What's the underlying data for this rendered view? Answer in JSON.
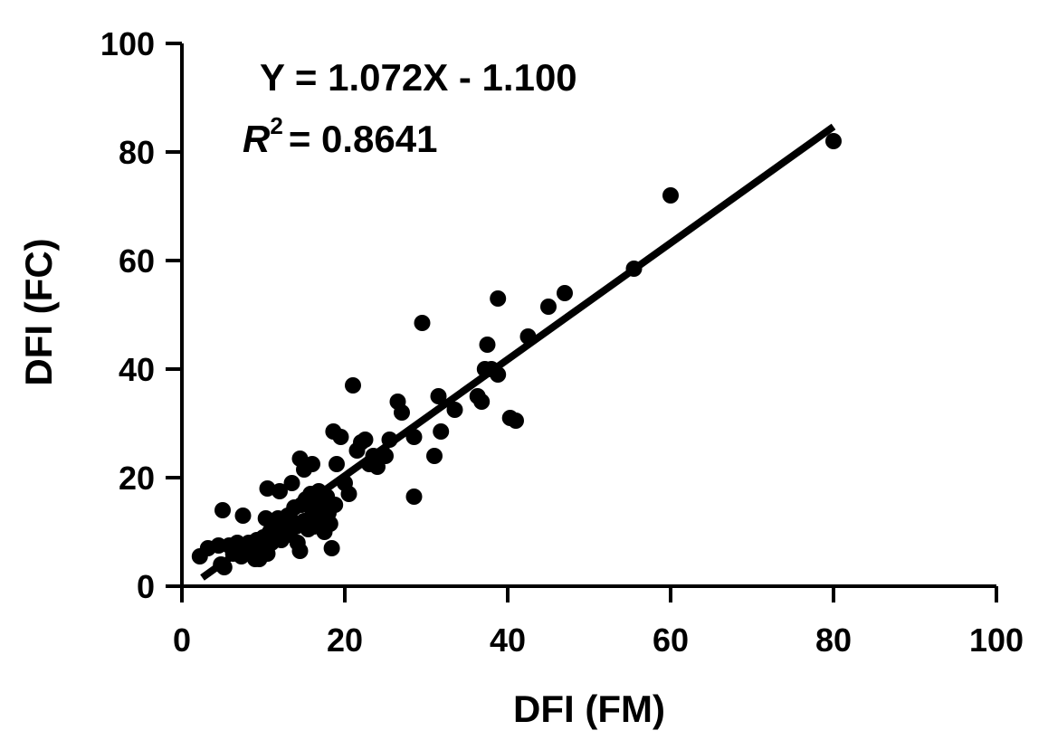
{
  "chart_data": {
    "type": "scatter",
    "title": "",
    "xlabel": "DFI (FM)",
    "ylabel": "DFI (FC)",
    "xlim": [
      0,
      100
    ],
    "ylim": [
      0,
      100
    ],
    "xticks": [
      "0",
      "20",
      "40",
      "60",
      "80",
      "100"
    ],
    "yticks": [
      "0",
      "20",
      "40",
      "60",
      "80",
      "100"
    ],
    "grid": false,
    "legend": "none",
    "colors": {
      "points": "#000000",
      "line": "#000000",
      "axes": "#000000"
    },
    "annotations": {
      "equation": "Y = 1.072X - 1.100",
      "r2_symbol": "R",
      "r2_superscript": "2",
      "r2_value": "= 0.8641"
    },
    "fit_line": {
      "slope": 1.072,
      "intercept": -1.1,
      "x_range": [
        2.5,
        80
      ]
    },
    "series": [
      {
        "x": [
          2.2,
          3.2,
          4.5,
          4.8,
          5.2,
          5.8,
          6.3,
          6.8,
          7.3,
          7.5,
          7.8,
          8.2,
          8.5,
          9.0,
          9.2,
          9.5,
          10.0,
          10.2,
          10.5,
          10.8,
          11.0,
          11.2,
          11.5,
          11.8,
          12.0,
          12.2,
          12.5,
          12.8,
          13.0,
          13.2,
          13.5,
          13.8,
          14.0,
          14.2,
          14.5,
          14.7,
          15.0,
          15.2,
          15.5,
          15.8,
          16.0,
          16.2,
          16.5,
          16.8,
          17.0,
          17.2,
          17.5,
          17.8,
          18.0,
          18.2,
          18.4,
          18.6,
          18.8,
          19.0,
          19.5,
          20.0,
          20.5,
          21.0,
          21.5,
          22.0,
          22.5,
          23.0,
          23.5,
          24.0,
          24.5,
          25.0,
          25.5,
          14.5,
          15.0,
          16.0,
          9.5,
          10.5,
          7.5,
          12.0,
          13.5,
          5.0,
          10.3,
          26.5,
          27.0,
          28.5,
          28.5,
          29.5,
          31.0,
          31.5,
          31.8,
          33.5,
          36.3,
          36.8,
          37.2,
          37.5,
          38.0,
          38.8,
          38.8,
          40.3,
          41.0,
          42.5,
          45.0,
          47.0,
          55.5,
          60.0,
          80.0
        ],
        "y": [
          5.5,
          7.0,
          7.5,
          4.0,
          3.5,
          7.5,
          6.0,
          8.0,
          5.5,
          6.5,
          7.0,
          8.0,
          6.0,
          5.0,
          8.5,
          6.5,
          9.0,
          7.0,
          6.0,
          10.0,
          8.0,
          11.0,
          9.0,
          12.5,
          10.0,
          8.5,
          11.5,
          10.0,
          13.0,
          9.5,
          12.0,
          14.5,
          11.0,
          8.0,
          6.5,
          15.0,
          12.0,
          16.0,
          10.5,
          17.0,
          13.0,
          11.0,
          14.5,
          17.5,
          12.0,
          15.0,
          10.0,
          16.5,
          13.5,
          11.5,
          7.0,
          28.5,
          15.0,
          22.5,
          27.5,
          19.0,
          17.0,
          37.0,
          25.0,
          26.5,
          27.0,
          22.5,
          24.0,
          22.0,
          24.0,
          24.0,
          27.0,
          23.5,
          21.5,
          22.5,
          5.0,
          18.0,
          13.0,
          17.5,
          19.0,
          14.0,
          12.5,
          34.0,
          32.0,
          27.5,
          16.5,
          48.5,
          24.0,
          35.0,
          28.5,
          32.5,
          35.0,
          34.0,
          40.0,
          44.5,
          40.0,
          53.0,
          39.0,
          31.0,
          30.5,
          46.0,
          51.5,
          54.0,
          58.5,
          72.0,
          82.0
        ]
      }
    ]
  }
}
